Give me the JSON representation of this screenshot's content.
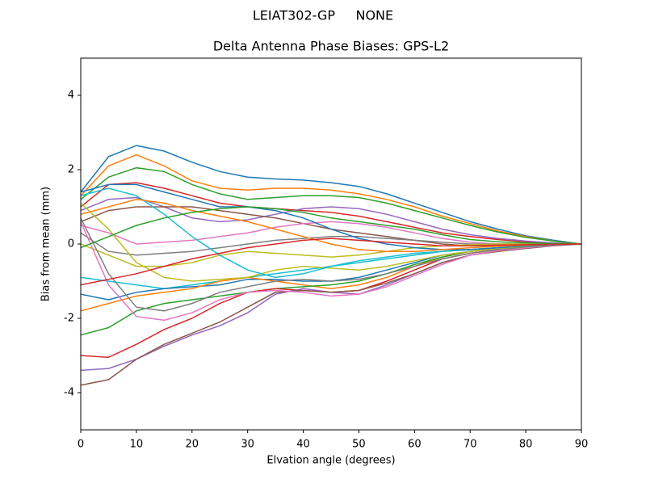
{
  "chart_data": {
    "type": "line",
    "suptitle": "LEIAT302-GP     NONE",
    "title": "Delta Antenna Phase Biases: GPS-L2",
    "xlabel": "Elvation angle (degrees)",
    "ylabel": "Bias from mean (mm)",
    "x": [
      0,
      5,
      10,
      15,
      20,
      25,
      30,
      35,
      40,
      45,
      50,
      55,
      60,
      65,
      70,
      75,
      80,
      85,
      90
    ],
    "xlim": [
      0,
      90
    ],
    "xticks": [
      0,
      10,
      20,
      30,
      40,
      50,
      60,
      70,
      80,
      90
    ],
    "ylim": [
      -5,
      5
    ],
    "yticks": [
      -4,
      -2,
      0,
      2,
      4
    ],
    "series": [
      {
        "color": "#1f77b4",
        "values": [
          1.4,
          2.35,
          2.65,
          2.5,
          2.2,
          1.95,
          1.8,
          1.75,
          1.72,
          1.65,
          1.55,
          1.35,
          1.1,
          0.85,
          0.6,
          0.4,
          0.22,
          0.1,
          0
        ]
      },
      {
        "color": "#ff7f0e",
        "values": [
          1.3,
          2.1,
          2.4,
          2.1,
          1.7,
          1.5,
          1.45,
          1.5,
          1.5,
          1.45,
          1.35,
          1.2,
          1.0,
          0.75,
          0.55,
          0.35,
          0.2,
          0.08,
          0
        ]
      },
      {
        "color": "#2ca02c",
        "values": [
          1.2,
          1.8,
          2.05,
          1.95,
          1.6,
          1.35,
          1.2,
          1.25,
          1.3,
          1.3,
          1.25,
          1.1,
          0.9,
          0.7,
          0.5,
          0.32,
          0.18,
          0.08,
          0
        ]
      },
      {
        "color": "#d62728",
        "values": [
          1.0,
          1.6,
          1.65,
          1.5,
          1.3,
          1.1,
          1.0,
          0.95,
          0.9,
          0.85,
          0.75,
          0.6,
          0.45,
          0.3,
          0.2,
          0.12,
          0.06,
          0.02,
          0
        ]
      },
      {
        "color": "#9467bd",
        "values": [
          0.9,
          1.2,
          1.25,
          1.0,
          0.7,
          0.6,
          0.65,
          0.8,
          0.95,
          1.0,
          0.95,
          0.8,
          0.6,
          0.4,
          0.25,
          0.15,
          0.08,
          0.03,
          0
        ]
      },
      {
        "color": "#8c564b",
        "values": [
          0.6,
          0.9,
          1.0,
          1.0,
          1.0,
          0.9,
          0.8,
          0.7,
          0.55,
          0.4,
          0.3,
          0.2,
          0.1,
          0.0,
          -0.05,
          -0.05,
          -0.03,
          -0.01,
          0
        ]
      },
      {
        "color": "#e377c2",
        "values": [
          0.5,
          0.3,
          0.0,
          0.05,
          0.1,
          0.2,
          0.3,
          0.45,
          0.55,
          0.6,
          0.55,
          0.45,
          0.3,
          0.15,
          0.05,
          0.0,
          0.0,
          0.0,
          0
        ]
      },
      {
        "color": "#7f7f7f",
        "values": [
          0.3,
          -0.2,
          -0.3,
          -0.25,
          -0.2,
          -0.1,
          0.0,
          0.1,
          0.15,
          0.2,
          0.2,
          0.15,
          0.1,
          0.05,
          0.0,
          0.0,
          0.0,
          0.0,
          0
        ]
      },
      {
        "color": "#bcbd22",
        "values": [
          0.0,
          -0.3,
          -0.6,
          -0.6,
          -0.5,
          -0.3,
          -0.2,
          -0.25,
          -0.3,
          -0.35,
          -0.3,
          -0.2,
          -0.1,
          -0.05,
          -0.02,
          0,
          0,
          0,
          0
        ]
      },
      {
        "color": "#17becf",
        "values": [
          -0.9,
          -1.0,
          -1.1,
          -1.2,
          -1.1,
          -1.0,
          -0.9,
          -0.8,
          -0.7,
          -0.6,
          -0.5,
          -0.4,
          -0.3,
          -0.2,
          -0.15,
          -0.1,
          -0.05,
          -0.02,
          0
        ]
      },
      {
        "color": "#1f77b4",
        "values": [
          -1.35,
          -1.5,
          -1.3,
          -1.2,
          -1.15,
          -1.1,
          -0.95,
          -0.95,
          -1.0,
          -1.0,
          -0.9,
          -0.7,
          -0.5,
          -0.3,
          -0.2,
          -0.12,
          -0.06,
          -0.02,
          0
        ]
      },
      {
        "color": "#ff7f0e",
        "values": [
          -1.8,
          -1.6,
          -1.4,
          -1.3,
          -1.2,
          -1.0,
          -0.9,
          -1.0,
          -1.1,
          -1.2,
          -1.1,
          -0.9,
          -0.6,
          -0.35,
          -0.2,
          -0.12,
          -0.06,
          -0.02,
          0
        ]
      },
      {
        "color": "#2ca02c",
        "values": [
          -2.45,
          -2.25,
          -1.8,
          -1.6,
          -1.5,
          -1.4,
          -1.3,
          -1.2,
          -1.15,
          -1.1,
          -1.0,
          -0.8,
          -0.55,
          -0.35,
          -0.2,
          -0.12,
          -0.06,
          -0.02,
          0
        ]
      },
      {
        "color": "#d62728",
        "values": [
          -3.0,
          -3.05,
          -2.7,
          -2.3,
          -2.0,
          -1.6,
          -1.3,
          -1.2,
          -1.25,
          -1.3,
          -1.25,
          -1.0,
          -0.7,
          -0.4,
          -0.25,
          -0.15,
          -0.08,
          -0.03,
          0
        ]
      },
      {
        "color": "#9467bd",
        "values": [
          -3.4,
          -3.35,
          -3.1,
          -2.75,
          -2.45,
          -2.2,
          -1.85,
          -1.35,
          -1.2,
          -1.3,
          -1.35,
          -1.1,
          -0.8,
          -0.5,
          -0.3,
          -0.18,
          -0.1,
          -0.04,
          0
        ]
      },
      {
        "color": "#8c564b",
        "values": [
          -3.8,
          -3.65,
          -3.1,
          -2.7,
          -2.4,
          -2.1,
          -1.7,
          -1.3,
          -1.25,
          -1.3,
          -1.25,
          -1.05,
          -0.8,
          -0.5,
          -0.3,
          -0.2,
          -0.12,
          -0.05,
          0
        ]
      },
      {
        "color": "#e377c2",
        "values": [
          0.6,
          -1.1,
          -1.95,
          -2.05,
          -1.85,
          -1.5,
          -1.3,
          -1.25,
          -1.3,
          -1.4,
          -1.35,
          -1.15,
          -0.85,
          -0.55,
          -0.3,
          -0.18,
          -0.1,
          -0.04,
          0
        ]
      },
      {
        "color": "#7f7f7f",
        "values": [
          0.7,
          -0.8,
          -1.7,
          -1.8,
          -1.6,
          -1.3,
          -1.15,
          -1.0,
          -0.95,
          -1.0,
          -0.95,
          -0.8,
          -0.6,
          -0.4,
          -0.25,
          -0.15,
          -0.08,
          -0.03,
          0
        ]
      },
      {
        "color": "#bcbd22",
        "values": [
          1.1,
          0.4,
          -0.5,
          -0.9,
          -1.0,
          -0.95,
          -0.9,
          -0.7,
          -0.6,
          -0.65,
          -0.7,
          -0.6,
          -0.45,
          -0.3,
          -0.2,
          -0.12,
          -0.06,
          -0.02,
          0
        ]
      },
      {
        "color": "#17becf",
        "values": [
          1.3,
          1.5,
          1.3,
          0.8,
          0.2,
          -0.3,
          -0.7,
          -0.9,
          -0.8,
          -0.6,
          -0.45,
          -0.35,
          -0.25,
          -0.2,
          -0.15,
          -0.1,
          -0.05,
          -0.02,
          0
        ]
      },
      {
        "color": "#1f77b4",
        "values": [
          1.4,
          1.6,
          1.6,
          1.4,
          1.2,
          1.0,
          1.0,
          0.9,
          0.7,
          0.4,
          0.15,
          0.0,
          -0.1,
          -0.15,
          -0.15,
          -0.1,
          -0.05,
          -0.02,
          0
        ]
      },
      {
        "color": "#ff7f0e",
        "values": [
          0.8,
          1.0,
          1.2,
          1.1,
          0.9,
          0.75,
          0.6,
          0.4,
          0.2,
          0.0,
          -0.15,
          -0.2,
          -0.2,
          -0.15,
          -0.1,
          -0.06,
          -0.03,
          -0.01,
          0
        ]
      },
      {
        "color": "#2ca02c",
        "values": [
          -0.1,
          0.2,
          0.5,
          0.7,
          0.85,
          0.95,
          1.0,
          0.95,
          0.85,
          0.7,
          0.6,
          0.5,
          0.4,
          0.25,
          0.12,
          0.06,
          0.03,
          0.01,
          0
        ]
      },
      {
        "color": "#d62728",
        "values": [
          -1.1,
          -0.95,
          -0.8,
          -0.6,
          -0.4,
          -0.25,
          -0.1,
          0.0,
          0.1,
          0.15,
          0.1,
          0.05,
          0.0,
          -0.05,
          -0.05,
          -0.03,
          -0.02,
          -0.01,
          0
        ]
      }
    ]
  }
}
